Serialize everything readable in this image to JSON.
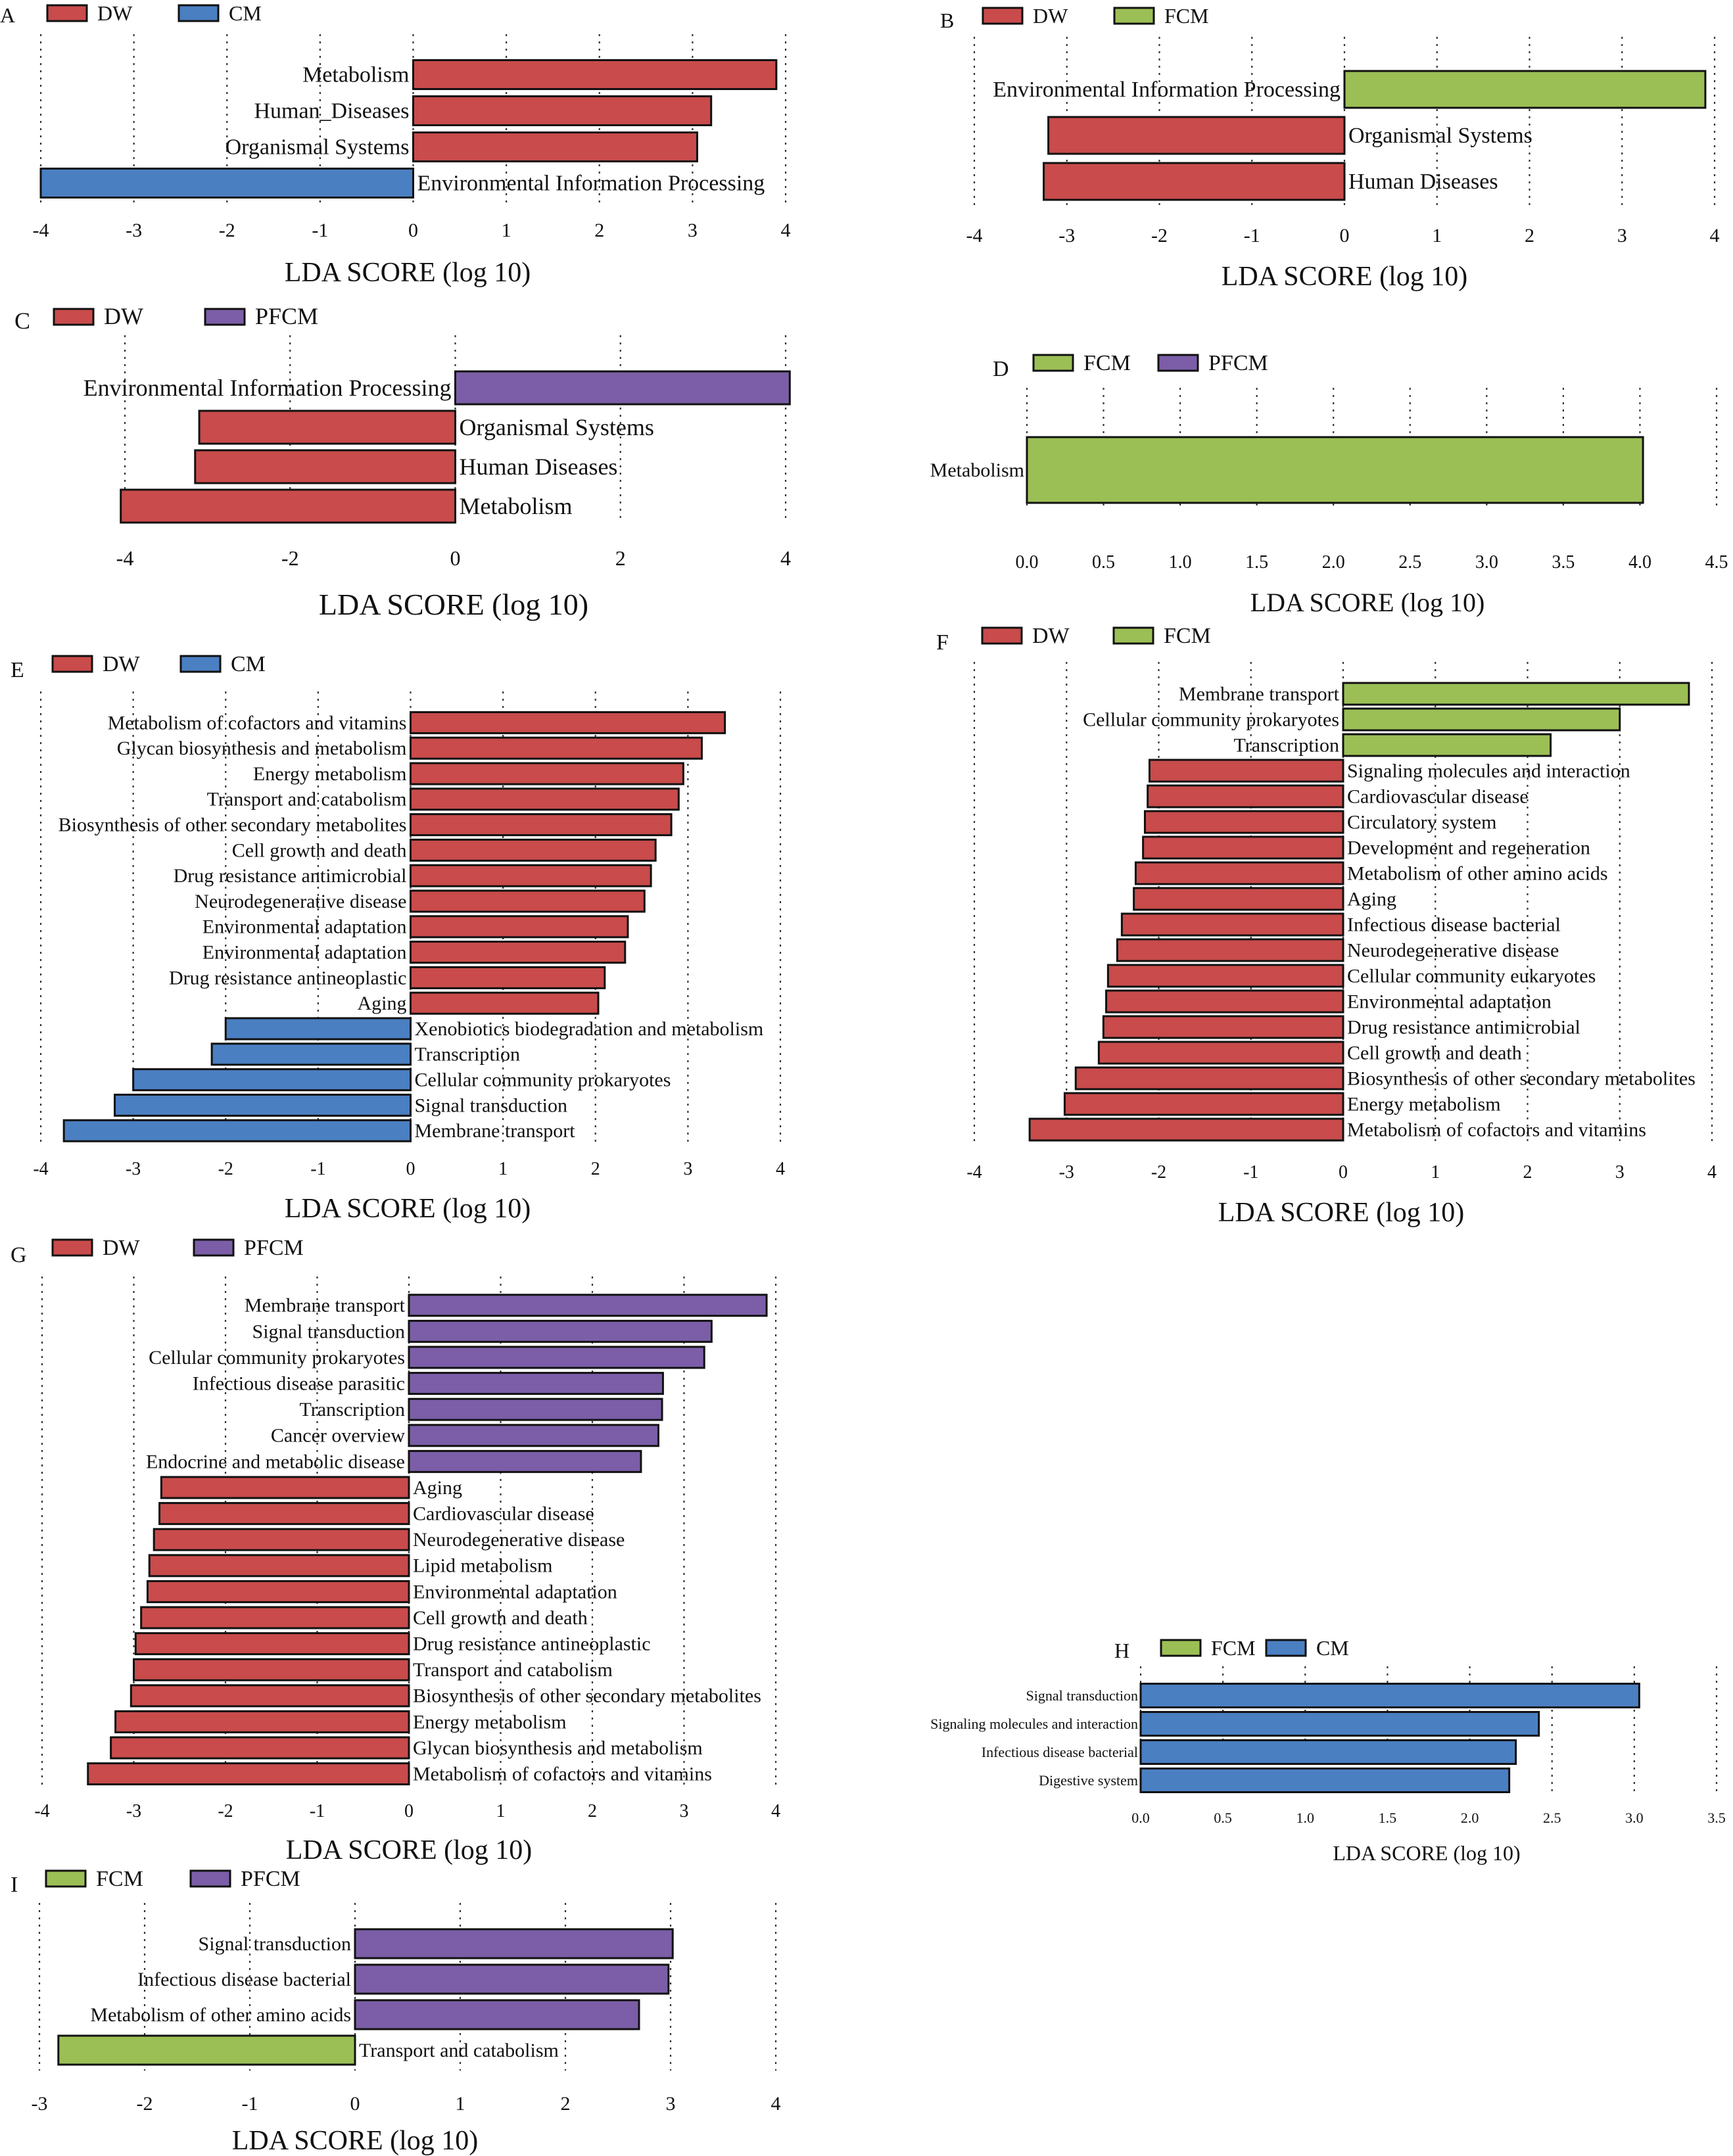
{
  "colors": {
    "DW": "#c94b4b",
    "CM": "#4a7fc1",
    "FCM": "#9bbf55",
    "PFCM": "#7b5ea7"
  },
  "chart_data": [
    {
      "id": "A",
      "type": "bar",
      "orientation": "horizontal",
      "legend": [
        {
          "name": "DW",
          "color": "#c94b4b"
        },
        {
          "name": "CM",
          "color": "#4a7fc1"
        }
      ],
      "xlim": [
        -4,
        4
      ],
      "ticks": [
        "-4",
        "-3",
        "-2",
        "-1",
        "0",
        "1",
        "2",
        "3",
        "4"
      ],
      "xlabel": "LDA SCORE (log 10)",
      "bars": [
        {
          "label": "Metabolism",
          "value": 3.9,
          "group": "DW"
        },
        {
          "label": "Human_Diseases",
          "value": 3.2,
          "group": "DW"
        },
        {
          "label": "Organismal Systems",
          "value": 3.05,
          "group": "DW"
        },
        {
          "label": "Environmental Information Processing",
          "value": -4.0,
          "group": "CM"
        }
      ]
    },
    {
      "id": "B",
      "type": "bar",
      "orientation": "horizontal",
      "legend": [
        {
          "name": "DW",
          "color": "#c94b4b"
        },
        {
          "name": "FCM",
          "color": "#9bbf55"
        }
      ],
      "xlim": [
        -4,
        4
      ],
      "ticks": [
        "-4",
        "-3",
        "-2",
        "-1",
        "0",
        "1",
        "2",
        "3",
        "4"
      ],
      "xlabel": "LDA SCORE (log 10)",
      "bars": [
        {
          "label": "Environmental Information Processing",
          "value": 3.9,
          "group": "FCM"
        },
        {
          "label": "Organismal Systems",
          "value": -3.2,
          "group": "DW"
        },
        {
          "label": "Human Diseases",
          "value": -3.25,
          "group": "DW"
        }
      ]
    },
    {
      "id": "C",
      "type": "bar",
      "orientation": "horizontal",
      "legend": [
        {
          "name": "DW",
          "color": "#c94b4b"
        },
        {
          "name": "PFCM",
          "color": "#7b5ea7"
        }
      ],
      "xlim": [
        -4,
        4
      ],
      "ticks": [
        "-4",
        "-2",
        "0",
        "2",
        "4"
      ],
      "xlabel": "LDA SCORE (log 10)",
      "bars": [
        {
          "label": "Environmental Information Processing",
          "value": 4.05,
          "group": "PFCM"
        },
        {
          "label": "Organismal Systems",
          "value": -3.1,
          "group": "DW"
        },
        {
          "label": "Human Diseases",
          "value": -3.15,
          "group": "DW"
        },
        {
          "label": "Metabolism",
          "value": -4.05,
          "group": "DW"
        }
      ]
    },
    {
      "id": "D",
      "type": "bar",
      "orientation": "horizontal",
      "legend": [
        {
          "name": "FCM",
          "color": "#9bbf55"
        },
        {
          "name": "PFCM",
          "color": "#7b5ea7"
        }
      ],
      "xlim": [
        0,
        4.5
      ],
      "ticks": [
        "0.0",
        "0.5",
        "1.0",
        "1.5",
        "2.0",
        "2.5",
        "3.0",
        "3.5",
        "4.0",
        "4.5"
      ],
      "xlabel": "LDA SCORE (log 10)",
      "bars": [
        {
          "label": "Metabolism",
          "value": 4.02,
          "group": "FCM"
        }
      ]
    },
    {
      "id": "E",
      "type": "bar",
      "orientation": "horizontal",
      "legend": [
        {
          "name": "DW",
          "color": "#c94b4b"
        },
        {
          "name": "CM",
          "color": "#4a7fc1"
        }
      ],
      "xlim": [
        -4,
        4
      ],
      "ticks": [
        "-4",
        "-3",
        "-2",
        "-1",
        "0",
        "1",
        "2",
        "3",
        "4"
      ],
      "xlabel": "LDA SCORE (log 10)",
      "bars": [
        {
          "label": "Metabolism of cofactors and vitamins",
          "value": 3.4,
          "group": "DW"
        },
        {
          "label": "Glycan biosynthesis and metabolism",
          "value": 3.15,
          "group": "DW"
        },
        {
          "label": "Energy metabolism",
          "value": 2.95,
          "group": "DW"
        },
        {
          "label": "Transport and catabolism",
          "value": 2.9,
          "group": "DW"
        },
        {
          "label": "Biosynthesis of other secondary metabolites",
          "value": 2.82,
          "group": "DW"
        },
        {
          "label": "Cell growth and death",
          "value": 2.65,
          "group": "DW"
        },
        {
          "label": "Drug resistance antimicrobial",
          "value": 2.6,
          "group": "DW"
        },
        {
          "label": "Neurodegenerative disease",
          "value": 2.53,
          "group": "DW"
        },
        {
          "label": "Environmental adaptation",
          "value": 2.35,
          "group": "DW"
        },
        {
          "label": "Environmental adaptation",
          "value": 2.32,
          "group": "DW"
        },
        {
          "label": "Drug resistance antineoplastic",
          "value": 2.1,
          "group": "DW"
        },
        {
          "label": "Aging",
          "value": 2.03,
          "group": "DW"
        },
        {
          "label": "Xenobiotics biodegradation and metabolism",
          "value": -2.0,
          "group": "CM"
        },
        {
          "label": "Transcription",
          "value": -2.15,
          "group": "CM"
        },
        {
          "label": "Cellular community prokaryotes",
          "value": -3.0,
          "group": "CM"
        },
        {
          "label": "Signal transduction",
          "value": -3.2,
          "group": "CM"
        },
        {
          "label": "Membrane transport",
          "value": -3.75,
          "group": "CM"
        }
      ]
    },
    {
      "id": "F",
      "type": "bar",
      "orientation": "horizontal",
      "legend": [
        {
          "name": "DW",
          "color": "#c94b4b"
        },
        {
          "name": "FCM",
          "color": "#9bbf55"
        }
      ],
      "xlim": [
        -4,
        4
      ],
      "ticks": [
        "-4",
        "-3",
        "-2",
        "-1",
        "0",
        "1",
        "2",
        "3",
        "4"
      ],
      "xlabel": "LDA SCORE (log 10)",
      "bars": [
        {
          "label": "Membrane transport",
          "value": 3.75,
          "group": "FCM"
        },
        {
          "label": "Cellular community prokaryotes",
          "value": 3.0,
          "group": "FCM"
        },
        {
          "label": "Transcription",
          "value": 2.25,
          "group": "FCM"
        },
        {
          "label": "Signaling molecules and interaction",
          "value": -2.1,
          "group": "DW"
        },
        {
          "label": "Cardiovascular disease",
          "value": -2.12,
          "group": "DW"
        },
        {
          "label": "Circulatory system",
          "value": -2.15,
          "group": "DW"
        },
        {
          "label": "Development and regeneration",
          "value": -2.17,
          "group": "DW"
        },
        {
          "label": "Metabolism of other amino acids",
          "value": -2.25,
          "group": "DW"
        },
        {
          "label": "Aging",
          "value": -2.27,
          "group": "DW"
        },
        {
          "label": "Infectious disease bacterial",
          "value": -2.4,
          "group": "DW"
        },
        {
          "label": "Neurodegenerative disease",
          "value": -2.45,
          "group": "DW"
        },
        {
          "label": "Cellular community eukaryotes",
          "value": -2.55,
          "group": "DW"
        },
        {
          "label": "Environmental adaptation",
          "value": -2.57,
          "group": "DW"
        },
        {
          "label": "Drug resistance antimicrobial",
          "value": -2.6,
          "group": "DW"
        },
        {
          "label": "Cell growth and death",
          "value": -2.65,
          "group": "DW"
        },
        {
          "label": "Biosynthesis of other secondary metabolites",
          "value": -2.9,
          "group": "DW"
        },
        {
          "label": "Energy metabolism",
          "value": -3.02,
          "group": "DW"
        },
        {
          "label": "Metabolism of cofactors and vitamins",
          "value": -3.4,
          "group": "DW"
        }
      ]
    },
    {
      "id": "G",
      "type": "bar",
      "orientation": "horizontal",
      "legend": [
        {
          "name": "DW",
          "color": "#c94b4b"
        },
        {
          "name": "PFCM",
          "color": "#7b5ea7"
        }
      ],
      "xlim": [
        -4,
        4
      ],
      "ticks": [
        "-4",
        "-3",
        "-2",
        "-1",
        "0",
        "1",
        "2",
        "3",
        "4"
      ],
      "xlabel": "LDA SCORE (log 10)",
      "bars": [
        {
          "label": "Membrane transport",
          "value": 3.9,
          "group": "PFCM"
        },
        {
          "label": "Signal transduction",
          "value": 3.3,
          "group": "PFCM"
        },
        {
          "label": "Cellular community prokaryotes",
          "value": 3.22,
          "group": "PFCM"
        },
        {
          "label": "Infectious disease parasitic",
          "value": 2.77,
          "group": "PFCM"
        },
        {
          "label": "Transcription",
          "value": 2.76,
          "group": "PFCM"
        },
        {
          "label": "Cancer overview",
          "value": 2.72,
          "group": "PFCM"
        },
        {
          "label": "Endocrine and metabolic disease",
          "value": 2.53,
          "group": "PFCM"
        },
        {
          "label": "Aging",
          "value": -2.7,
          "group": "DW"
        },
        {
          "label": "Cardiovascular disease",
          "value": -2.72,
          "group": "DW"
        },
        {
          "label": "Neurodegenerative disease",
          "value": -2.78,
          "group": "DW"
        },
        {
          "label": "Lipid metabolism",
          "value": -2.83,
          "group": "DW"
        },
        {
          "label": "Environmental adaptation",
          "value": -2.85,
          "group": "DW"
        },
        {
          "label": "Cell growth and death",
          "value": -2.92,
          "group": "DW"
        },
        {
          "label": "Drug resistance antineoplastic",
          "value": -2.98,
          "group": "DW"
        },
        {
          "label": "Transport and catabolism",
          "value": -3.0,
          "group": "DW"
        },
        {
          "label": "Biosynthesis of other secondary metabolites",
          "value": -3.03,
          "group": "DW"
        },
        {
          "label": "Energy metabolism",
          "value": -3.2,
          "group": "DW"
        },
        {
          "label": "Glycan biosynthesis and metabolism",
          "value": -3.25,
          "group": "DW"
        },
        {
          "label": "Metabolism of cofactors and vitamins",
          "value": -3.5,
          "group": "DW"
        }
      ]
    },
    {
      "id": "H",
      "type": "bar",
      "orientation": "horizontal",
      "legend": [
        {
          "name": "FCM",
          "color": "#9bbf55"
        },
        {
          "name": "CM",
          "color": "#4a7fc1"
        }
      ],
      "xlim": [
        0,
        3.5
      ],
      "ticks": [
        "0.0",
        "0.5",
        "1.0",
        "1.5",
        "2.0",
        "2.5",
        "3.0",
        "3.5"
      ],
      "xlabel": "LDA SCORE (log 10)",
      "bars": [
        {
          "label": "Signal transduction",
          "value": 3.03,
          "group": "CM"
        },
        {
          "label": "Signaling molecules and interaction",
          "value": 2.42,
          "group": "CM"
        },
        {
          "label": "Infectious disease bacterial",
          "value": 2.28,
          "group": "CM"
        },
        {
          "label": "Digestive system",
          "value": 2.24,
          "group": "CM"
        }
      ]
    },
    {
      "id": "I",
      "type": "bar",
      "orientation": "horizontal",
      "legend": [
        {
          "name": "FCM",
          "color": "#9bbf55"
        },
        {
          "name": "PFCM",
          "color": "#7b5ea7"
        }
      ],
      "xlim": [
        -3,
        4
      ],
      "ticks": [
        "-3",
        "-2",
        "-1",
        "0",
        "1",
        "2",
        "3",
        "4"
      ],
      "xlabel": "LDA SCORE (log 10)",
      "bars": [
        {
          "label": "Signal transduction",
          "value": 3.02,
          "group": "PFCM"
        },
        {
          "label": "Infectious disease bacterial",
          "value": 2.98,
          "group": "PFCM"
        },
        {
          "label": "Metabolism of other amino acids",
          "value": 2.7,
          "group": "PFCM"
        },
        {
          "label": "Transport and catabolism",
          "value": -2.82,
          "group": "FCM"
        }
      ]
    }
  ]
}
